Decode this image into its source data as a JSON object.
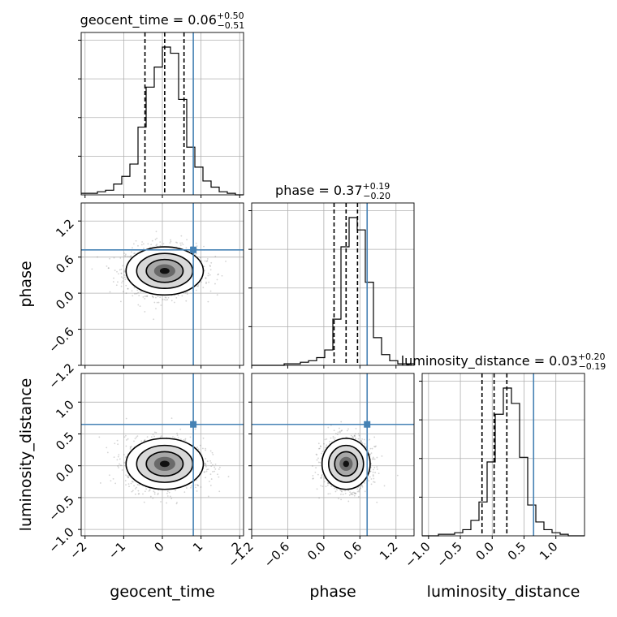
{
  "chart_data": {
    "type": "corner",
    "parameters": [
      "geocent_time",
      "phase",
      "luminosity_distance"
    ],
    "titles": [
      {
        "param": "geocent_time",
        "label": "geocent_time",
        "median": "0.06",
        "plus": "+0.50",
        "minus": "−0.51"
      },
      {
        "param": "phase",
        "label": "phase",
        "median": "0.37",
        "plus": "+0.19",
        "minus": "−0.20"
      },
      {
        "param": "luminosity_distance",
        "label": "luminosity_distance",
        "median": "0.03",
        "plus": "+0.20",
        "minus": "−0.19"
      }
    ],
    "axis_labels": {
      "x": [
        "geocent_time",
        "phase",
        "luminosity_distance"
      ],
      "y": [
        "phase",
        "luminosity_distance"
      ]
    },
    "ranges": {
      "geocent_time": [
        -2.1,
        2.1
      ],
      "phase": [
        -1.2,
        1.5
      ],
      "luminosity_distance": [
        -1.1,
        1.45
      ]
    },
    "ticks": {
      "geocent_time": {
        "values": [
          -2,
          -1,
          0,
          1,
          2
        ],
        "labels": [
          "−2",
          "−1",
          "0",
          "1",
          "2"
        ]
      },
      "phase": {
        "values": [
          -1.2,
          -0.6,
          0.0,
          0.6,
          1.2
        ],
        "labels": [
          "−1.2",
          "−0.6",
          "0.0",
          "0.6",
          "1.2"
        ]
      },
      "luminosity_distance": {
        "values": [
          -1.0,
          -0.5,
          0.0,
          0.5,
          1.0
        ],
        "labels": [
          "−1.0",
          "−0.5",
          "0.0",
          "0.5",
          "1.0"
        ]
      }
    },
    "truth": {
      "geocent_time": 0.8,
      "phase": 0.72,
      "luminosity_distance": 0.65
    },
    "truth_color": "#4682b4",
    "quantiles": {
      "geocent_time": [
        -0.45,
        0.06,
        0.56
      ],
      "phase": [
        0.17,
        0.37,
        0.56
      ],
      "luminosity_distance": [
        -0.16,
        0.03,
        0.23
      ]
    },
    "histograms": {
      "geocent_time": {
        "edges_from": -2.1,
        "edges_to": 2.1,
        "counts": [
          1,
          1,
          2,
          3,
          7,
          12,
          20,
          44,
          70,
          83,
          96,
          92,
          62,
          31,
          18,
          9,
          5,
          2,
          1,
          0
        ]
      },
      "phase": {
        "edges_from": -1.2,
        "edges_to": 1.5,
        "counts": [
          0,
          0,
          0,
          0,
          1,
          1,
          2,
          3,
          5,
          10,
          30,
          77,
          96,
          88,
          54,
          18,
          7,
          3,
          1,
          1
        ]
      },
      "luminosity_distance": {
        "edges_from": -1.1,
        "edges_to": 1.45,
        "counts": [
          0,
          0,
          1,
          1,
          2,
          4,
          10,
          22,
          48,
          79,
          96,
          86,
          51,
          20,
          9,
          4,
          2,
          1,
          0,
          0
        ]
      }
    },
    "posterior_std": {
      "geocent_time": 0.5,
      "phase": 0.2,
      "luminosity_distance": 0.2
    },
    "grid": true,
    "color": "#000000"
  }
}
